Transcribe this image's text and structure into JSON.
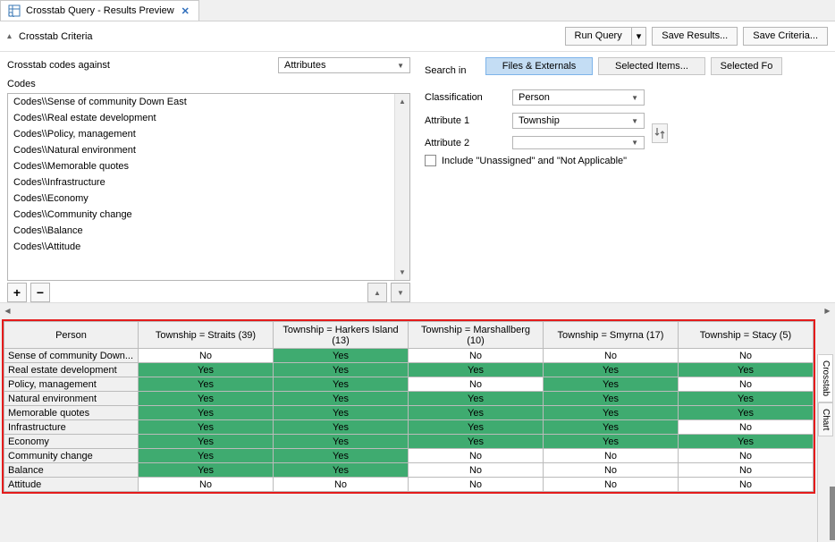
{
  "tab": {
    "title": "Crosstab Query - Results Preview"
  },
  "criteria": {
    "header": "Crosstab Criteria",
    "runQuery": "Run Query",
    "saveResults": "Save Results...",
    "saveCriteria": "Save Criteria...",
    "codesAgainst": "Crosstab codes against",
    "attribSelect": "Attributes",
    "searchIn": "Search in",
    "filesExternals": "Files & Externals",
    "selectedItems": "Selected Items...",
    "selectedFolders": "Selected Fo",
    "classification": "Classification",
    "classificationVal": "Person",
    "attr1": "Attribute 1",
    "attr1Val": "Township",
    "attr2": "Attribute 2",
    "attr2Val": "",
    "includeUnassigned": "Include \"Unassigned\" and \"Not Applicable\"",
    "codesLabel": "Codes",
    "codes": [
      "Codes\\\\Sense of community Down East",
      "Codes\\\\Real estate development",
      "Codes\\\\Policy, management",
      "Codes\\\\Natural environment",
      "Codes\\\\Memorable quotes",
      "Codes\\\\Infrastructure",
      "Codes\\\\Economy",
      "Codes\\\\Community change",
      "Codes\\\\Balance",
      "Codes\\\\Attitude"
    ]
  },
  "results": {
    "rowHeader": "Person",
    "columns": [
      "Township = Straits (39)",
      "Township = Harkers Island (13)",
      "Township = Marshallberg (10)",
      "Township = Smyrna (17)",
      "Township = Stacy (5)"
    ],
    "rows": [
      {
        "label": "Sense of community Down...",
        "vals": [
          "No",
          "Yes",
          "No",
          "No",
          "No"
        ]
      },
      {
        "label": "Real estate development",
        "vals": [
          "Yes",
          "Yes",
          "Yes",
          "Yes",
          "Yes"
        ]
      },
      {
        "label": "Policy, management",
        "vals": [
          "Yes",
          "Yes",
          "No",
          "Yes",
          "No"
        ]
      },
      {
        "label": "Natural environment",
        "vals": [
          "Yes",
          "Yes",
          "Yes",
          "Yes",
          "Yes"
        ]
      },
      {
        "label": "Memorable quotes",
        "vals": [
          "Yes",
          "Yes",
          "Yes",
          "Yes",
          "Yes"
        ]
      },
      {
        "label": "Infrastructure",
        "vals": [
          "Yes",
          "Yes",
          "Yes",
          "Yes",
          "No"
        ]
      },
      {
        "label": "Economy",
        "vals": [
          "Yes",
          "Yes",
          "Yes",
          "Yes",
          "Yes"
        ]
      },
      {
        "label": "Community change",
        "vals": [
          "Yes",
          "Yes",
          "No",
          "No",
          "No"
        ]
      },
      {
        "label": "Balance",
        "vals": [
          "Yes",
          "Yes",
          "No",
          "No",
          "No"
        ]
      },
      {
        "label": "Attitude",
        "vals": [
          "No",
          "No",
          "No",
          "No",
          "No"
        ]
      }
    ],
    "yesColor": "#3fab70",
    "noColor": "#ffffff"
  },
  "sideTabs": {
    "crosstab": "Crosstab",
    "chart": "Chart"
  }
}
